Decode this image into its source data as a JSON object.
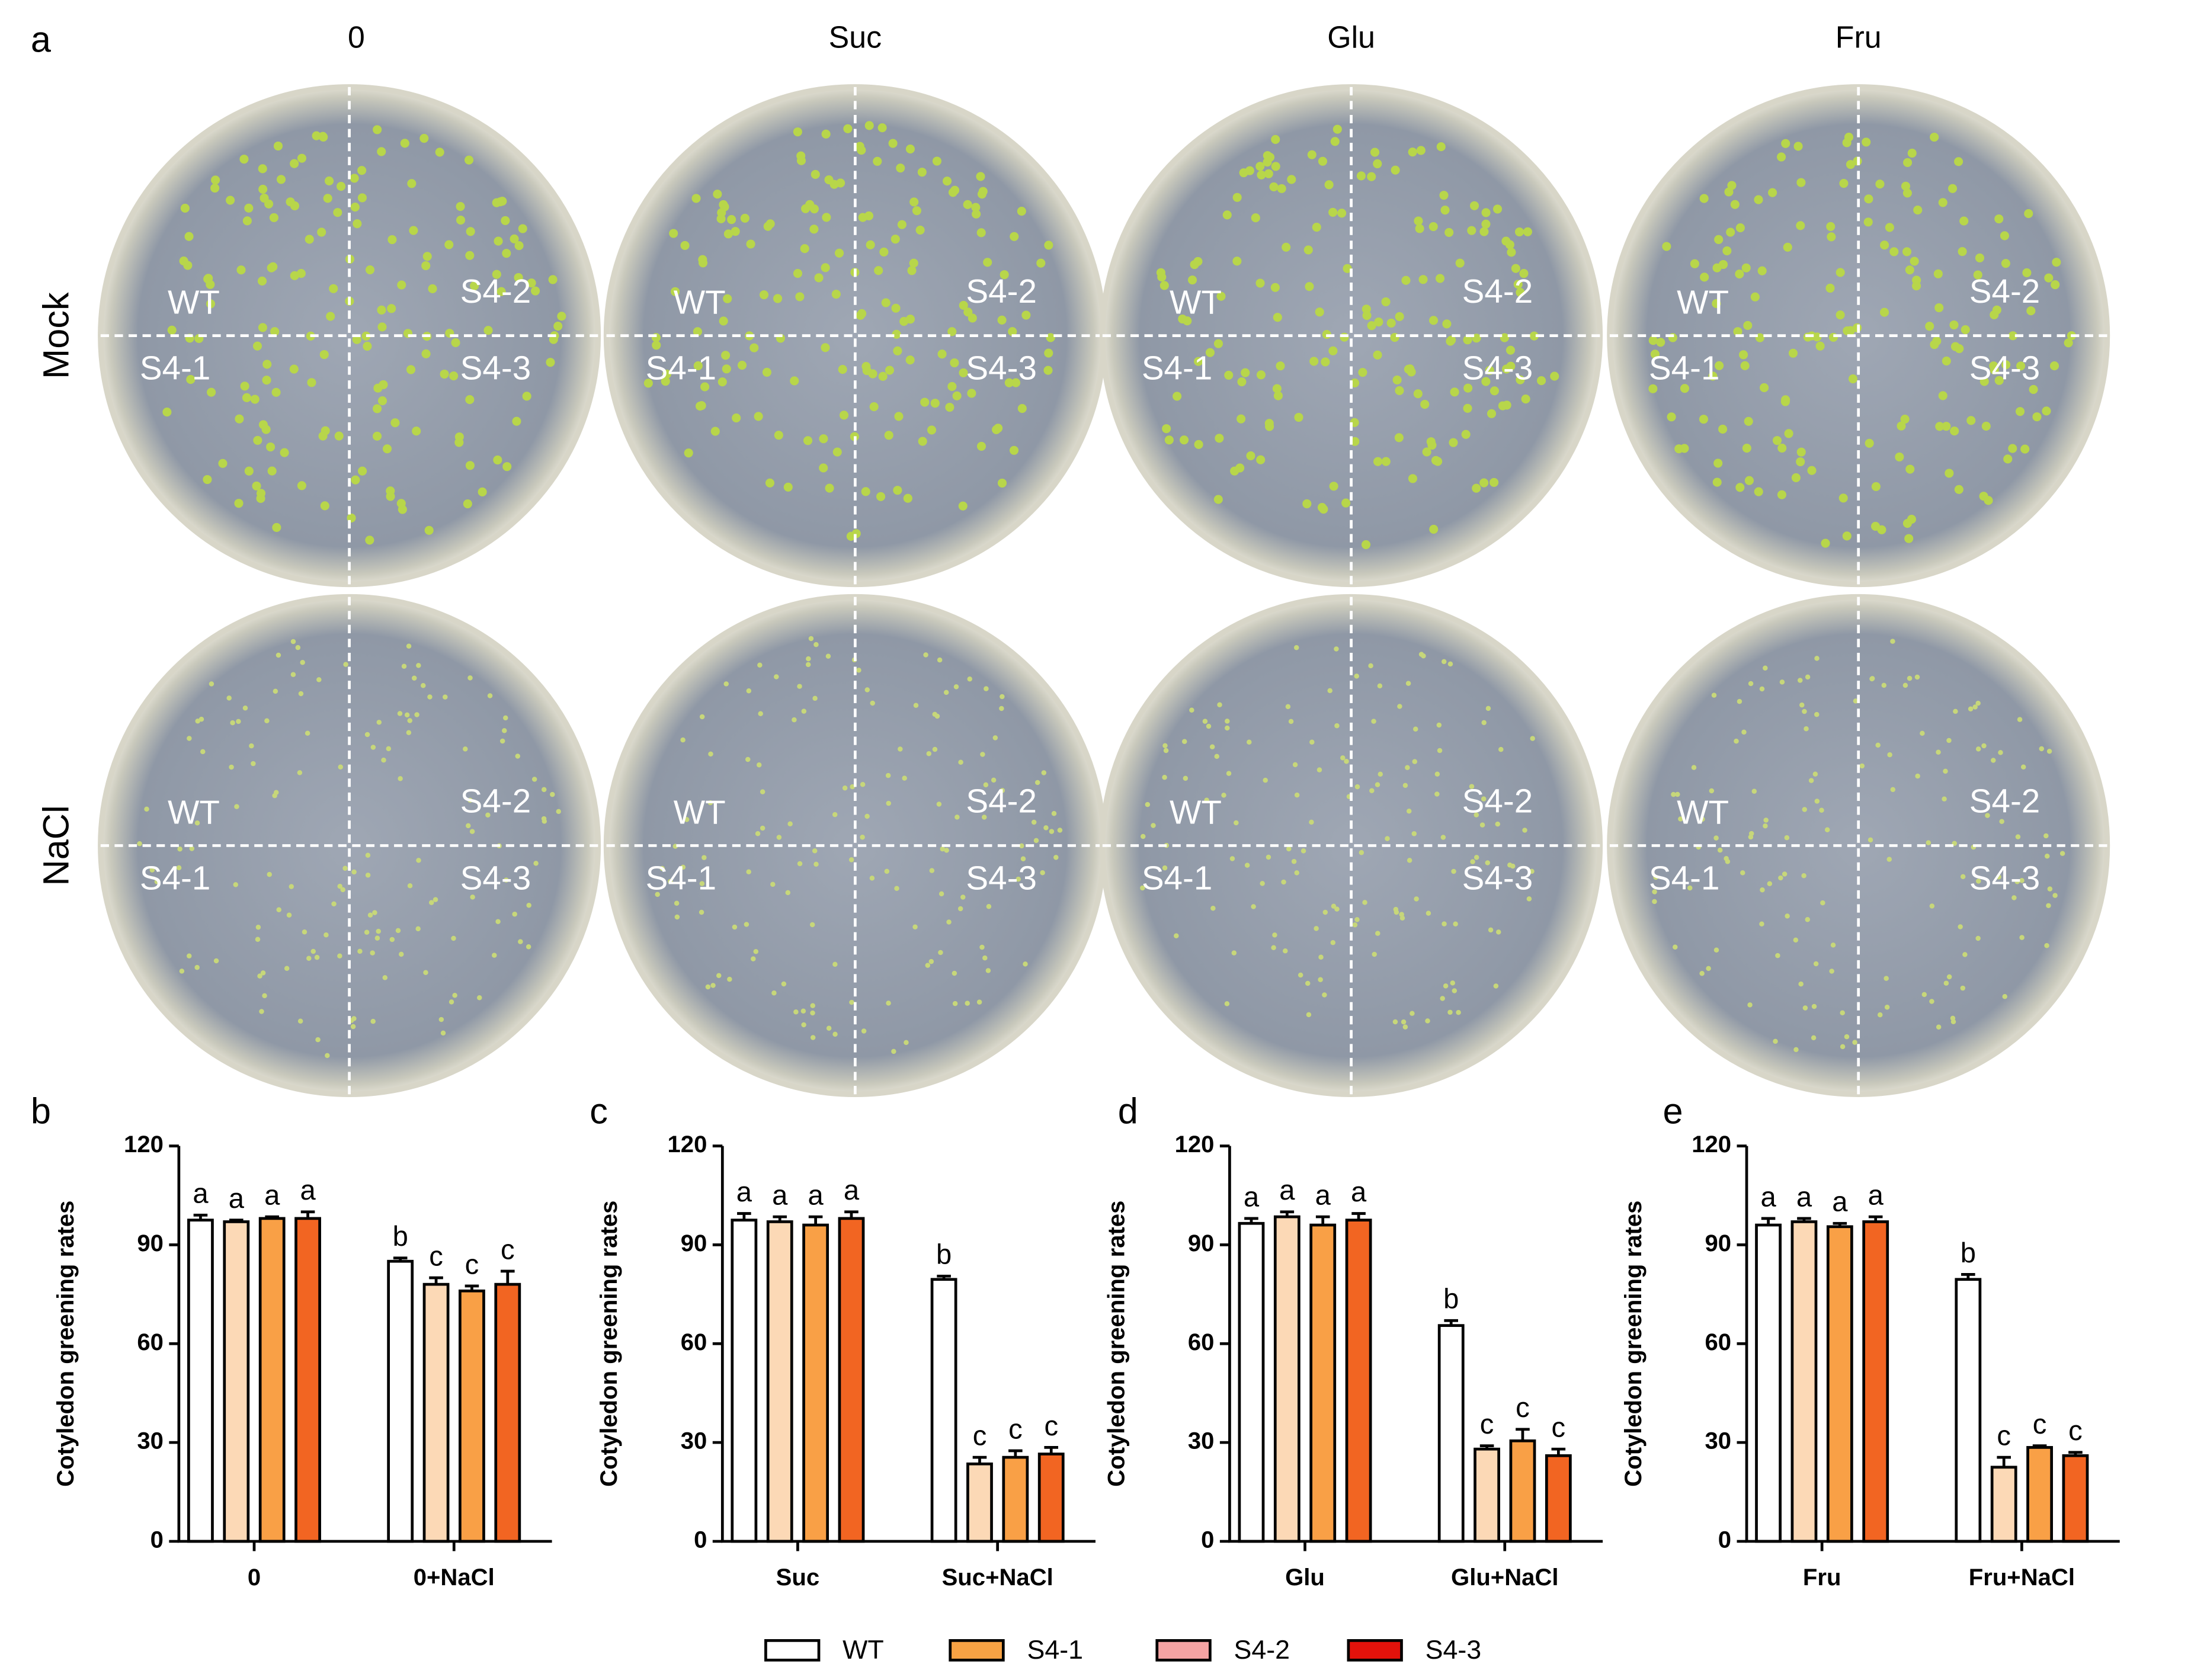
{
  "photo_panel": {
    "label": "a",
    "columns": [
      "0",
      "Suc",
      "Glu",
      "Fru"
    ],
    "rows": [
      "Mock",
      "NaCl"
    ],
    "quadrants": [
      "WT",
      "S4-2",
      "S4-1",
      "S4-3"
    ]
  },
  "chart_data": [
    {
      "type": "bar",
      "panel": "b",
      "y_label": "Cotyledon greening rates",
      "categories": [
        "0",
        "0+NaCl"
      ],
      "ylim": [
        0,
        120
      ],
      "yticks": [
        0,
        30,
        60,
        90,
        120
      ],
      "series": [
        {
          "name": "WT",
          "color": "#ffffff",
          "legend_color": "#ffffff",
          "values": [
            97.5,
            85
          ],
          "errors": [
            1.5,
            1
          ],
          "letters": [
            "a",
            "b"
          ]
        },
        {
          "name": "S4-1",
          "color": "#fcd9b6",
          "legend_color": "#f7a244",
          "values": [
            97,
            78
          ],
          "errors": [
            0.5,
            2
          ],
          "letters": [
            "a",
            "c"
          ]
        },
        {
          "name": "S4-2",
          "color": "#f9a046",
          "legend_color": "#f4a3a3",
          "values": [
            98,
            76
          ],
          "errors": [
            0.5,
            1.5
          ],
          "letters": [
            "a",
            "c"
          ]
        },
        {
          "name": "S4-3",
          "color": "#f26522",
          "legend_color": "#e3120b",
          "values": [
            98,
            78
          ],
          "errors": [
            2,
            4
          ],
          "letters": [
            "a",
            "c"
          ]
        }
      ]
    },
    {
      "type": "bar",
      "panel": "c",
      "y_label": "Cotyledon greening rates",
      "categories": [
        "Suc",
        "Suc+NaCl"
      ],
      "ylim": [
        0,
        120
      ],
      "yticks": [
        0,
        30,
        60,
        90,
        120
      ],
      "series": [
        {
          "name": "WT",
          "color": "#ffffff",
          "values": [
            97.5,
            79.5
          ],
          "errors": [
            2,
            1
          ],
          "letters": [
            "a",
            "b"
          ]
        },
        {
          "name": "S4-1",
          "color": "#fcd9b6",
          "values": [
            97,
            23.5
          ],
          "errors": [
            1.5,
            2
          ],
          "letters": [
            "a",
            "c"
          ]
        },
        {
          "name": "S4-2",
          "color": "#f9a046",
          "values": [
            96,
            25.5
          ],
          "errors": [
            2.5,
            2
          ],
          "letters": [
            "a",
            "c"
          ]
        },
        {
          "name": "S4-3",
          "color": "#f26522",
          "values": [
            98,
            26.5
          ],
          "errors": [
            2,
            2
          ],
          "letters": [
            "a",
            "c"
          ]
        }
      ]
    },
    {
      "type": "bar",
      "panel": "d",
      "y_label": "Cotyledon greening rates",
      "categories": [
        "Glu",
        "Glu+NaCl"
      ],
      "ylim": [
        0,
        120
      ],
      "yticks": [
        0,
        30,
        60,
        90,
        120
      ],
      "series": [
        {
          "name": "WT",
          "color": "#ffffff",
          "values": [
            96.5,
            65.5
          ],
          "errors": [
            1.5,
            1.5
          ],
          "letters": [
            "a",
            "b"
          ]
        },
        {
          "name": "S4-1",
          "color": "#fcd9b6",
          "values": [
            98.5,
            28
          ],
          "errors": [
            1.5,
            1
          ],
          "letters": [
            "a",
            "c"
          ]
        },
        {
          "name": "S4-2",
          "color": "#f9a046",
          "values": [
            96,
            30.5
          ],
          "errors": [
            2.5,
            3.5
          ],
          "letters": [
            "a",
            "c"
          ]
        },
        {
          "name": "S4-3",
          "color": "#f26522",
          "values": [
            97.5,
            26
          ],
          "errors": [
            2,
            2
          ],
          "letters": [
            "a",
            "c"
          ]
        }
      ]
    },
    {
      "type": "bar",
      "panel": "e",
      "y_label": "Cotyledon greening rates",
      "categories": [
        "Fru",
        "Fru+NaCl"
      ],
      "ylim": [
        0,
        120
      ],
      "yticks": [
        0,
        30,
        60,
        90,
        120
      ],
      "series": [
        {
          "name": "WT",
          "color": "#ffffff",
          "values": [
            96,
            79.5
          ],
          "errors": [
            2,
            1.5
          ],
          "letters": [
            "a",
            "b"
          ]
        },
        {
          "name": "S4-1",
          "color": "#fcd9b6",
          "values": [
            97,
            22.5
          ],
          "errors": [
            1,
            3
          ],
          "letters": [
            "a",
            "c"
          ]
        },
        {
          "name": "S4-2",
          "color": "#f9a046",
          "values": [
            95.5,
            28.5
          ],
          "errors": [
            1,
            0.5
          ],
          "letters": [
            "a",
            "c"
          ]
        },
        {
          "name": "S4-3",
          "color": "#f26522",
          "values": [
            97,
            26
          ],
          "errors": [
            1.5,
            1
          ],
          "letters": [
            "a",
            "c"
          ]
        }
      ]
    }
  ]
}
